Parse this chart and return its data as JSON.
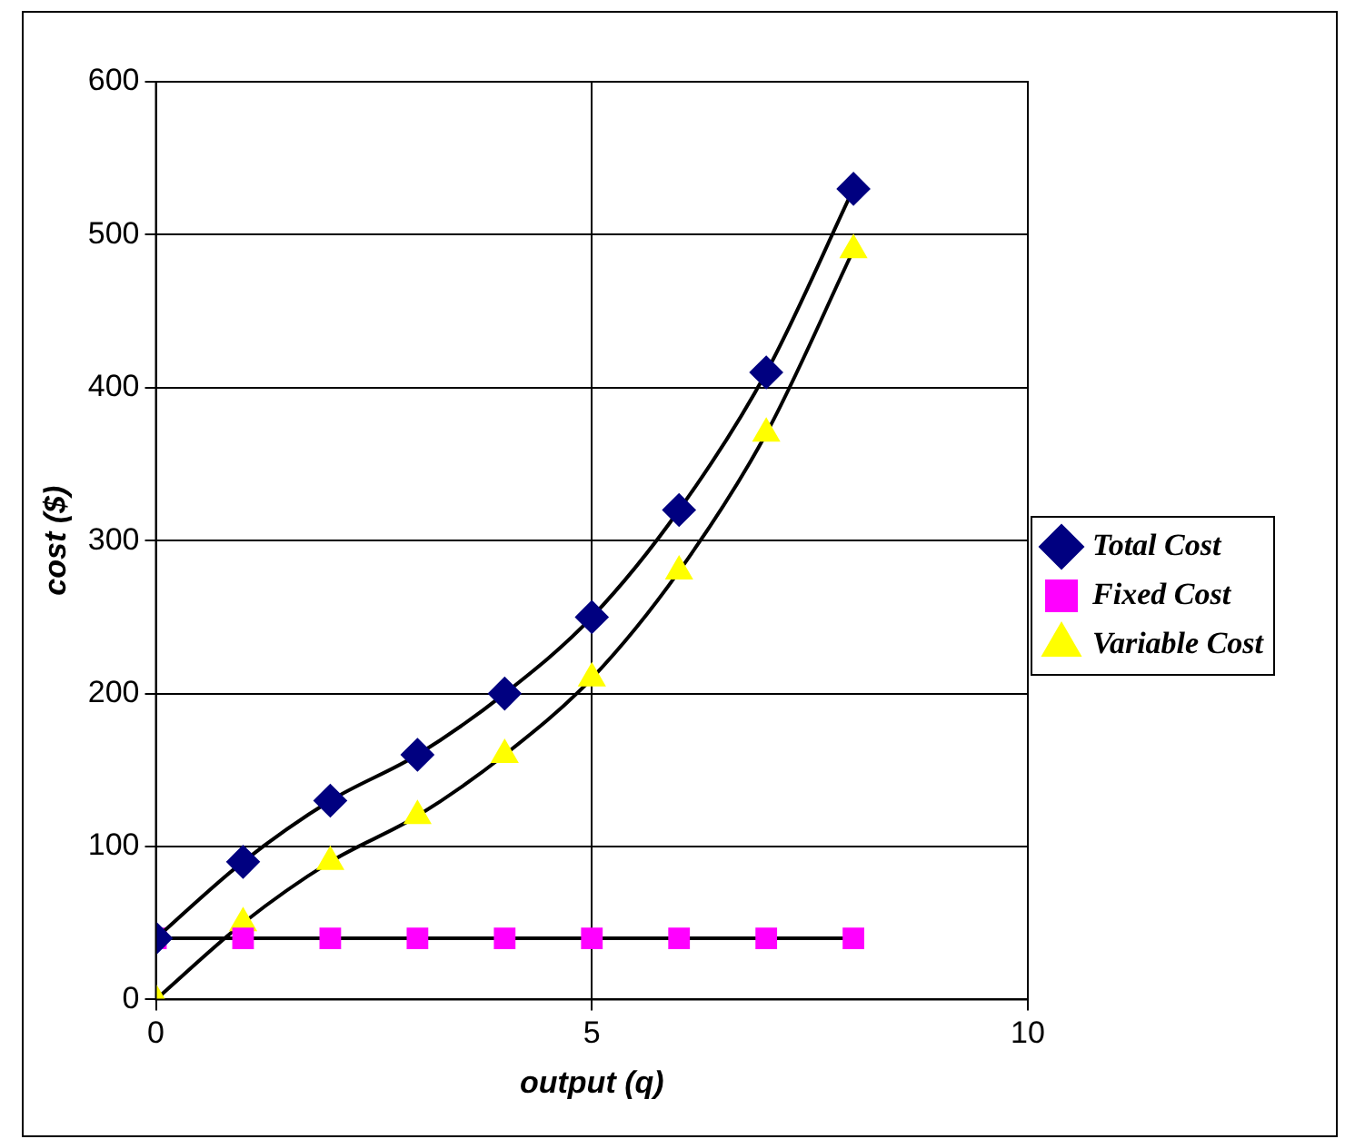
{
  "chart_data": {
    "type": "line",
    "xlabel": "output (q)",
    "ylabel": "cost ($)",
    "x": [
      0,
      1,
      2,
      3,
      4,
      5,
      6,
      7,
      8
    ],
    "series": [
      {
        "name": "Total Cost",
        "color": "#000080",
        "marker": "diamond",
        "values": [
          40,
          90,
          130,
          160,
          200,
          250,
          320,
          410,
          530
        ]
      },
      {
        "name": "Fixed Cost",
        "color": "#ff00ff",
        "marker": "square",
        "values": [
          40,
          40,
          40,
          40,
          40,
          40,
          40,
          40,
          40
        ]
      },
      {
        "name": "Variable Cost",
        "color": "#ffff00",
        "marker": "triangle",
        "values": [
          0,
          50,
          90,
          120,
          160,
          210,
          280,
          370,
          490
        ]
      }
    ],
    "xlim": [
      0,
      10
    ],
    "xticks": [
      0,
      5,
      10
    ],
    "ylim": [
      0,
      600
    ],
    "yticks": [
      0,
      100,
      200,
      300,
      400,
      500,
      600
    ],
    "grid": true,
    "legend": "right"
  }
}
